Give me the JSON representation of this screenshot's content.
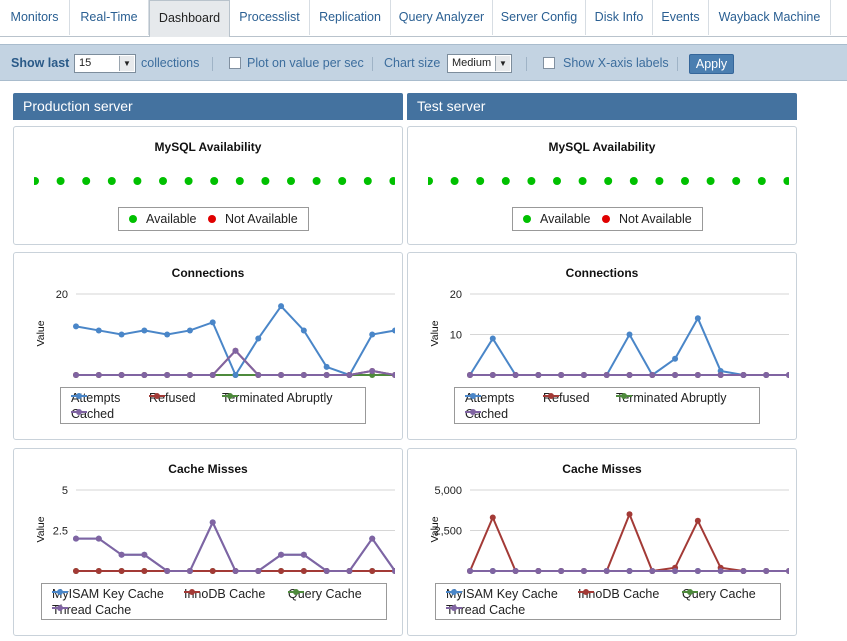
{
  "tabs": [
    "Monitors",
    "Real-Time",
    "Dashboard",
    "Processlist",
    "Replication",
    "Query Analyzer",
    "Server Config",
    "Disk Info",
    "Events",
    "Wayback Machine"
  ],
  "active_tab": "Dashboard",
  "toolbar": {
    "show_last_label": "Show last",
    "collections_value": "15",
    "collections_label": "collections",
    "plot_per_sec_label": "Plot on value per sec",
    "chart_size_label": "Chart size",
    "chart_size_value": "Medium",
    "show_x_labels_label": "Show X-axis labels",
    "apply_label": "Apply"
  },
  "columns": {
    "production_title": "Production server",
    "test_title": "Test server"
  },
  "colors": {
    "attempts": "#4a86c8",
    "refused": "#a33a36",
    "terminated": "#4e8a3c",
    "cached": "#8064a2",
    "available": "#00c000",
    "not_available": "#e00000"
  },
  "chart_data": [
    {
      "panel": "production-availability",
      "type": "scatter",
      "title": "MySQL Availability",
      "series": [
        {
          "name": "Available",
          "values": [
            1,
            1,
            1,
            1,
            1,
            1,
            1,
            1,
            1,
            1,
            1,
            1,
            1,
            1,
            1,
            1
          ]
        },
        {
          "name": "Not Available",
          "values": [
            0,
            0,
            0,
            0,
            0,
            0,
            0,
            0,
            0,
            0,
            0,
            0,
            0,
            0,
            0,
            0
          ]
        }
      ],
      "legend": [
        "Available",
        "Not Available"
      ]
    },
    {
      "panel": "test-availability",
      "type": "scatter",
      "title": "MySQL Availability",
      "series": [
        {
          "name": "Available",
          "values": [
            1,
            1,
            1,
            1,
            1,
            1,
            1,
            1,
            1,
            1,
            1,
            1,
            1,
            1,
            1,
            1
          ]
        },
        {
          "name": "Not Available",
          "values": [
            0,
            0,
            0,
            0,
            0,
            0,
            0,
            0,
            0,
            0,
            0,
            0,
            0,
            0,
            0,
            0
          ]
        }
      ],
      "legend": [
        "Available",
        "Not Available"
      ]
    },
    {
      "panel": "production-connections",
      "type": "line",
      "title": "Connections",
      "ylabel": "Value",
      "ylim": [
        0,
        20
      ],
      "yticks": [
        "20"
      ],
      "series": [
        {
          "name": "Attempts",
          "values": [
            12,
            11,
            10,
            11,
            10,
            11,
            13,
            0,
            9,
            17,
            11,
            2,
            0,
            10,
            11
          ]
        },
        {
          "name": "Refused",
          "values": [
            0,
            0,
            0,
            0,
            0,
            0,
            0,
            6,
            0,
            0,
            0,
            0,
            0,
            1,
            0
          ]
        },
        {
          "name": "Terminated Abruptly",
          "values": [
            0,
            0,
            0,
            0,
            0,
            0,
            0,
            0,
            0,
            0,
            0,
            0,
            0,
            0,
            0
          ]
        },
        {
          "name": "Cached",
          "values": [
            0,
            0,
            0,
            0,
            0,
            0,
            0,
            6,
            0,
            0,
            0,
            0,
            0,
            1,
            0
          ]
        }
      ]
    },
    {
      "panel": "test-connections",
      "type": "line",
      "title": "Connections",
      "ylabel": "Value",
      "ylim": [
        0,
        20
      ],
      "yticks": [
        "20",
        "10"
      ],
      "series": [
        {
          "name": "Attempts",
          "values": [
            0,
            9,
            0,
            0,
            0,
            0,
            0,
            10,
            0,
            4,
            14,
            1,
            0,
            0,
            0
          ]
        },
        {
          "name": "Refused",
          "values": [
            0,
            0,
            0,
            0,
            0,
            0,
            0,
            0,
            0,
            0,
            0,
            0,
            0,
            0,
            0
          ]
        },
        {
          "name": "Terminated Abruptly",
          "values": [
            0,
            0,
            0,
            0,
            0,
            0,
            0,
            0,
            0,
            0,
            0,
            0,
            0,
            0,
            0
          ]
        },
        {
          "name": "Cached",
          "values": [
            0,
            0,
            0,
            0,
            0,
            0,
            0,
            0,
            0,
            0,
            0,
            0,
            0,
            0,
            0
          ]
        }
      ]
    },
    {
      "panel": "production-cache-misses",
      "type": "line",
      "title": "Cache Misses",
      "ylabel": "Value",
      "ylim": [
        0,
        5
      ],
      "yticks": [
        "5",
        "2.5"
      ],
      "series": [
        {
          "name": "MyISAM Key Cache",
          "values": [
            2,
            2,
            1,
            1,
            0,
            0,
            3,
            0,
            0,
            1,
            1,
            0,
            0,
            2,
            0
          ]
        },
        {
          "name": "InnoDB Cache",
          "values": [
            0,
            0,
            0,
            0,
            0,
            0,
            0,
            0,
            0,
            0,
            0,
            0,
            0,
            0,
            0
          ]
        },
        {
          "name": "Query Cache",
          "values": [
            0,
            0,
            0,
            0,
            0,
            0,
            0,
            0,
            0,
            0,
            0,
            0,
            0,
            0,
            0
          ]
        },
        {
          "name": "Thread Cache",
          "values": [
            2,
            2,
            1,
            1,
            0,
            0,
            3,
            0,
            0,
            1,
            1,
            0,
            0,
            2,
            0
          ]
        }
      ]
    },
    {
      "panel": "test-cache-misses",
      "type": "line",
      "title": "Cache Misses",
      "ylabel": "Value",
      "ylim": [
        0,
        5000
      ],
      "yticks": [
        "5,000",
        "2,500"
      ],
      "series": [
        {
          "name": "MyISAM Key Cache",
          "values": [
            0,
            0,
            0,
            0,
            0,
            0,
            0,
            0,
            0,
            0,
            0,
            0,
            0,
            0,
            0
          ]
        },
        {
          "name": "InnoDB Cache",
          "values": [
            0,
            3300,
            0,
            0,
            0,
            0,
            0,
            3500,
            0,
            200,
            3100,
            200,
            0,
            0,
            0
          ]
        },
        {
          "name": "Query Cache",
          "values": [
            0,
            0,
            0,
            0,
            0,
            0,
            0,
            0,
            0,
            0,
            0,
            0,
            0,
            0,
            0
          ]
        },
        {
          "name": "Thread Cache",
          "values": [
            0,
            0,
            0,
            0,
            0,
            0,
            0,
            0,
            0,
            0,
            0,
            0,
            0,
            0,
            0
          ]
        }
      ]
    }
  ],
  "legends": {
    "availability": [
      "Available",
      "Not Available"
    ],
    "connections": [
      "Attempts",
      "Refused",
      "Terminated Abruptly",
      "Cached"
    ],
    "cache": [
      "MyISAM Key Cache",
      "InnoDB Cache",
      "Query Cache",
      "Thread Cache"
    ]
  }
}
